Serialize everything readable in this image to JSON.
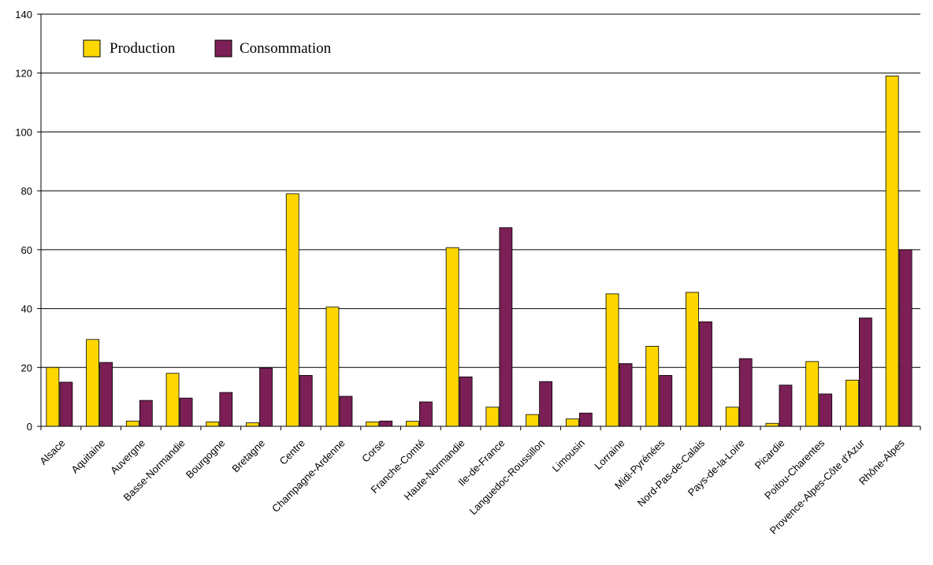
{
  "chart_data": {
    "type": "bar",
    "categories": [
      "Alsace",
      "Aquitaine",
      "Auvergne",
      "Basse-Normandie",
      "Bourgogne",
      "Bretagne",
      "Centre",
      "Champagne-Ardenne",
      "Corse",
      "Franche-Comté",
      "Haute-Normandie",
      "Ile-de-France",
      "Languedoc-Roussillon",
      "Limousin",
      "Lorraine",
      "Midi-Pyrénées",
      "Nord-Pas-de-Calais",
      "Pays-de-la-Loire",
      "Picardie",
      "Poitou-Charentes",
      "Provence-Alpes-Côte d'Azur",
      "Rhône-Alpes"
    ],
    "series": [
      {
        "name": "Production",
        "color": "#FFD700",
        "values": [
          20,
          29.5,
          1.8,
          18,
          1.5,
          1.2,
          79,
          40.5,
          1.5,
          1.7,
          60.7,
          6.5,
          4,
          2.5,
          45,
          27.2,
          45.5,
          6.5,
          1,
          22,
          15.7,
          119
        ]
      },
      {
        "name": "Consommation",
        "color": "#7B1F56",
        "values": [
          15,
          21.7,
          8.8,
          9.6,
          11.5,
          19.8,
          17.3,
          10.2,
          1.8,
          8.3,
          16.8,
          67.5,
          15.2,
          4.5,
          21.3,
          17.3,
          35.5,
          23,
          14,
          11,
          36.8,
          60
        ]
      }
    ],
    "ylim": [
      0,
      140
    ],
    "yticks": [
      "0",
      "20",
      "40",
      "60",
      "80",
      "100",
      "120",
      "140"
    ],
    "grid": true,
    "legend": "top-left"
  }
}
